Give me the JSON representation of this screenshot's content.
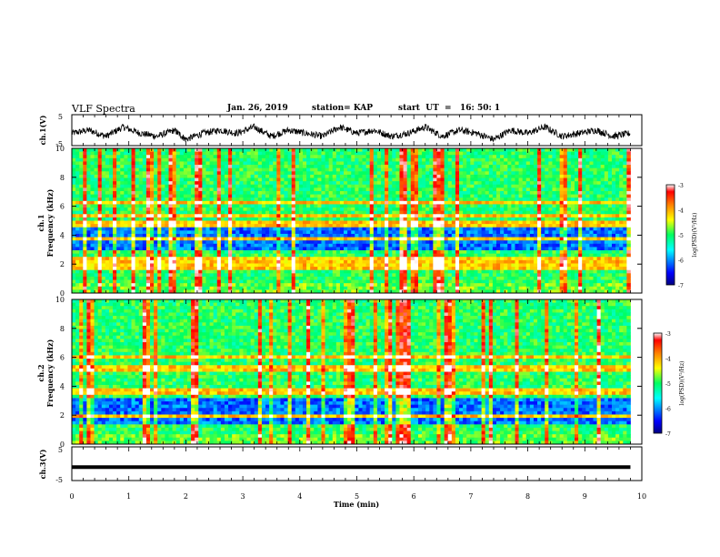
{
  "header": {
    "title": "VLF Spectra",
    "date": "Jan. 26, 2019",
    "station": "station= KAP",
    "start": "start  UT  =   16: 50: 1"
  },
  "chart_data": [
    {
      "type": "line",
      "panel": "ch1-waveform",
      "ylabel": "ch.1(V)",
      "ylim": [
        -5,
        5
      ],
      "yticks": [
        "5",
        "-5"
      ],
      "xlim": [
        0,
        10
      ],
      "note": "noisy voltage trace centred near -1 V, swinging roughly -4 to 4 V from 0 to 9.8 min",
      "x": [
        0,
        0.3,
        0.6,
        0.9,
        1.2,
        1.5,
        1.8,
        2.0,
        2.3,
        2.6,
        2.9,
        3.2,
        3.5,
        3.8,
        4.1,
        4.4,
        4.7,
        5.0,
        5.3,
        5.6,
        5.9,
        6.2,
        6.5,
        6.8,
        7.1,
        7.4,
        7.7,
        8.0,
        8.3,
        8.6,
        8.9,
        9.2,
        9.5,
        9.8
      ],
      "values": [
        -1,
        0,
        -2,
        1,
        -1,
        -2,
        0,
        -3,
        -1,
        0,
        -1,
        1,
        -2,
        0,
        -1,
        -2,
        1,
        -1,
        0,
        -2,
        -1,
        1,
        -2,
        0,
        -1,
        -3,
        0,
        -1,
        1,
        -2,
        -1,
        0,
        -2,
        -1
      ]
    },
    {
      "type": "heatmap",
      "panel": "ch1-spectrogram",
      "ylabel": "ch.1\nFrequency (kHz)",
      "ylim": [
        0,
        10
      ],
      "yticks": [
        0,
        2,
        4,
        6,
        8,
        10
      ],
      "xlim": [
        0,
        10
      ],
      "data_xmax": 9.8,
      "colorbar": {
        "label": "log(PSD)(V²/Hz)",
        "range": [
          -7,
          -3
        ],
        "ticks": [
          "-3",
          "-4",
          "-5",
          "-6",
          "-7"
        ]
      },
      "note": "broadband impulsive vertical streaks (sferics) throughout; horizontal narrowband lines near 0.3, 1.8, 2.3, 3.8, 4.8, 5.3, 6.3 kHz; weaker (blue) region around 3-4.5 kHz and 1.5-2 kHz"
    },
    {
      "type": "heatmap",
      "panel": "ch2-spectrogram",
      "ylabel": "ch.2\nFrequency (kHz)",
      "ylim": [
        0,
        10
      ],
      "yticks": [
        0,
        2,
        4,
        6,
        8,
        10
      ],
      "xlim": [
        0,
        10
      ],
      "data_xmax": 9.8,
      "colorbar": {
        "label": "log(PSD)(V²/Hz)",
        "range": [
          -7,
          -3
        ],
        "ticks": [
          "-3",
          "-4",
          "-5",
          "-6",
          "-7"
        ]
      },
      "note": "similar structure to ch.1 with strong red streaks near 2.2, 4.9, 5.8 min; blue band near 1.5-3 kHz"
    },
    {
      "type": "line",
      "panel": "ch3-waveform",
      "ylabel": "ch.3(V)",
      "ylim": [
        -5,
        5
      ],
      "yticks": [
        "5",
        "-5"
      ],
      "xlim": [
        0,
        10
      ],
      "xlabel": "Time (min)",
      "xticks": [
        0,
        1,
        2,
        3,
        4,
        5,
        6,
        7,
        8,
        9,
        10
      ],
      "x": [
        0,
        9.8
      ],
      "values": [
        -1,
        -1
      ]
    }
  ]
}
